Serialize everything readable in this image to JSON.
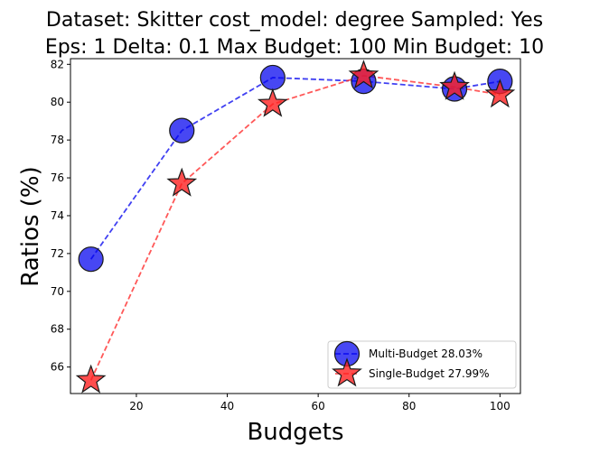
{
  "chart_data": {
    "type": "line",
    "title_line1": "Dataset: Skitter cost_model: degree Sampled: Yes",
    "title_line2": "Eps: 1 Delta: 0.1 Max Budget: 100 Min Budget: 10",
    "xlabel": "Budgets",
    "ylabel": "Ratios (%)",
    "xlim": [
      5.5,
      104.5
    ],
    "ylim": [
      64.6,
      82.3
    ],
    "xticks": [
      20,
      40,
      60,
      80,
      100
    ],
    "yticks": [
      66,
      68,
      70,
      72,
      74,
      76,
      78,
      80,
      82
    ],
    "grid": false,
    "legend_position": "lower-right",
    "series": [
      {
        "name": "Multi-Budget 28.03%",
        "marker": "circle",
        "color": "#0000ee",
        "x": [
          10,
          30,
          50,
          70,
          90,
          100
        ],
        "values": [
          71.7,
          78.5,
          81.3,
          81.1,
          80.7,
          81.1
        ]
      },
      {
        "name": "Single-Budget 27.99%",
        "marker": "star",
        "color": "#ff2020",
        "x": [
          10,
          30,
          50,
          70,
          90,
          100
        ],
        "values": [
          65.3,
          75.7,
          79.9,
          81.4,
          80.8,
          80.4
        ]
      }
    ]
  }
}
